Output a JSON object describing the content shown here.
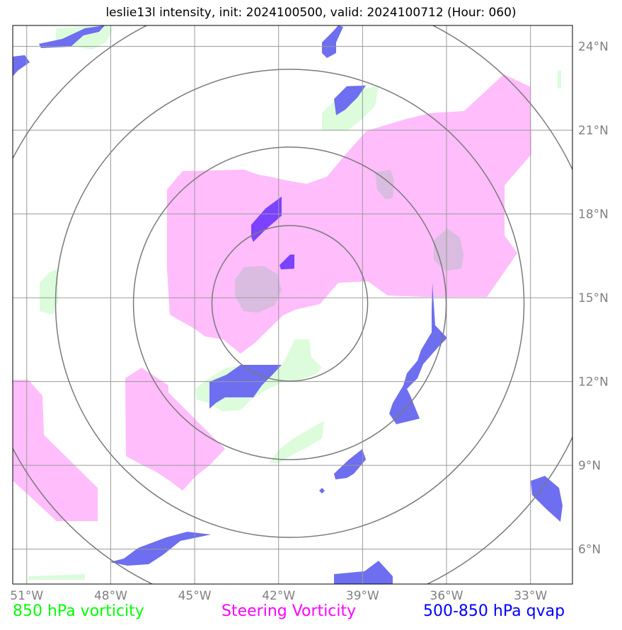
{
  "title": "leslie13l intensity, init: 2024100500, valid: 2024100712 (Hour: 060)",
  "axes": {
    "lon_ticks": [
      -51,
      -48,
      -45,
      -42,
      -39,
      -36,
      -33
    ],
    "lon_labels": [
      "51°W",
      "48°W",
      "45°W",
      "42°W",
      "39°W",
      "36°W",
      "33°W"
    ],
    "lat_ticks": [
      6,
      9,
      12,
      15,
      18,
      21,
      24
    ],
    "lat_labels": [
      "6°N",
      "9°N",
      "12°N",
      "15°N",
      "18°N",
      "21°N",
      "24°N"
    ],
    "lon_range": [
      -51.5,
      -31.5
    ],
    "lat_range": [
      4.75,
      24.75
    ]
  },
  "storm_center": {
    "lon": -41.6,
    "lat": 14.8
  },
  "range_rings": [
    "ring-1",
    "ring-2",
    "ring-3",
    "ring-4"
  ],
  "legend": {
    "vorticity_850": {
      "label": "850 hPa vorticity",
      "color": "#00ff00"
    },
    "steering_vorticity": {
      "label": "Steering Vorticity",
      "color": "#ff00ff"
    },
    "qvap_500_850": {
      "label": "500-850 hPa qvap",
      "color": "#0000ff"
    }
  },
  "fill_colors": {
    "magenta": "#ffbdfb",
    "green": "#dcfcdc",
    "blue": "#6e6ef0",
    "purple": "#7b42ff",
    "mauve": "#d9bcdf"
  }
}
